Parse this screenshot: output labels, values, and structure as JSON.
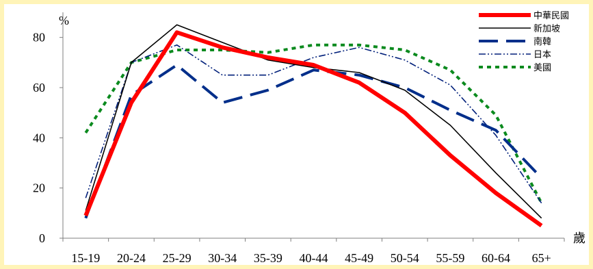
{
  "chart_data": {
    "type": "line",
    "title": "",
    "y_unit": "%",
    "x_unit": "歲",
    "categories": [
      "15-19",
      "20-24",
      "25-29",
      "30-34",
      "35-39",
      "40-44",
      "45-49",
      "50-54",
      "55-59",
      "60-64",
      "65+"
    ],
    "y_ticks": [
      0,
      20,
      40,
      60,
      80
    ],
    "ylim": [
      0,
      90
    ],
    "grid": false,
    "legend_position": "top-right",
    "series": [
      {
        "name": "中華民國",
        "color": "#FF0000",
        "style": "solid-thick",
        "values": [
          9,
          54,
          82,
          76,
          72,
          69,
          62,
          50,
          33,
          18,
          5
        ]
      },
      {
        "name": "新加坡",
        "color": "#000000",
        "style": "solid-thin",
        "values": [
          11,
          70,
          85,
          78,
          71,
          68,
          66,
          59,
          45,
          26,
          8
        ]
      },
      {
        "name": "南韓",
        "color": "#002E8A",
        "style": "long-dash",
        "values": [
          8,
          57,
          69,
          54,
          59,
          67,
          65,
          60,
          51,
          43,
          24
        ]
      },
      {
        "name": "日本",
        "color": "#001F7A",
        "style": "dash-dot-dot",
        "values": [
          16,
          70,
          77,
          65,
          65,
          72,
          76,
          71,
          61,
          41,
          14
        ]
      },
      {
        "name": "美國",
        "color": "#0B8A1E",
        "style": "short-dash",
        "values": [
          42,
          70,
          75,
          75,
          74,
          77,
          77,
          75,
          67,
          49,
          14
        ]
      }
    ]
  }
}
